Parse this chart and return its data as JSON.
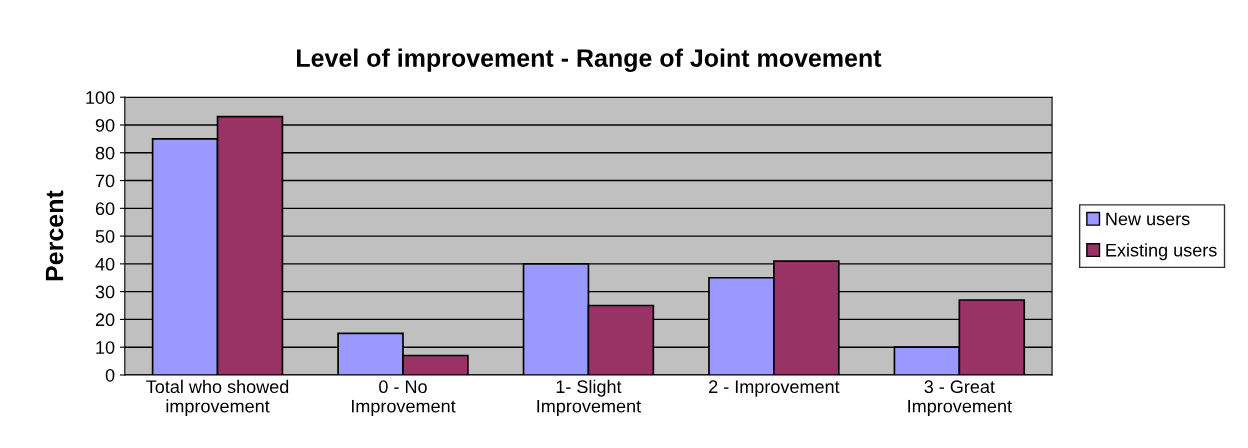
{
  "chart_data": {
    "type": "bar",
    "title": "Level of improvement - Range of Joint movement",
    "ylabel": "Percent",
    "categories": [
      "Total who showed\nimprovement",
      "0 - No\nImprovement",
      "1- Slight\nImprovement",
      "2 - Improvement",
      "3 - Great\nImprovement"
    ],
    "series": [
      {
        "name": "New users",
        "color": "#9999ff",
        "values": [
          85,
          15,
          40,
          35,
          10
        ]
      },
      {
        "name": "Existing users",
        "color": "#993366",
        "values": [
          93,
          7,
          25,
          41,
          27
        ]
      }
    ],
    "ylim": [
      0,
      100
    ],
    "yticks": [
      0,
      10,
      20,
      30,
      40,
      50,
      60,
      70,
      80,
      90,
      100
    ],
    "grid": "y",
    "legend": "right"
  }
}
